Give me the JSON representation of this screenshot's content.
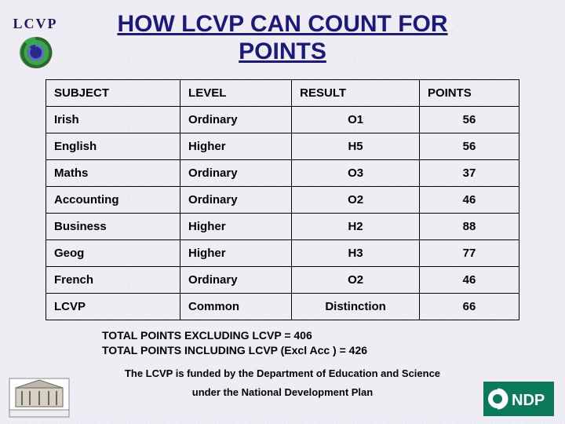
{
  "logo_text": "LCVP",
  "title_line1": "HOW LCVP CAN COUNT FOR",
  "title_line2": "POINTS",
  "table": {
    "headers": [
      "SUBJECT",
      "LEVEL",
      "RESULT",
      "POINTS"
    ],
    "rows": [
      {
        "subject": "Irish",
        "level": "Ordinary",
        "result": "O1",
        "points": "56"
      },
      {
        "subject": "English",
        "level": "Higher",
        "result": "H5",
        "points": "56"
      },
      {
        "subject": "Maths",
        "level": "Ordinary",
        "result": "O3",
        "points": "37"
      },
      {
        "subject": "Accounting",
        "level": "Ordinary",
        "result": "O2",
        "points": "46"
      },
      {
        "subject": "Business",
        "level": "Higher",
        "result": "H2",
        "points": "88"
      },
      {
        "subject": "Geog",
        "level": "Higher",
        "result": "H3",
        "points": "77"
      },
      {
        "subject": "French",
        "level": "Ordinary",
        "result": "O2",
        "points": "46"
      },
      {
        "subject": "LCVP",
        "level": "Common",
        "result": "Distinction",
        "points": "66"
      }
    ],
    "col_align": [
      "left",
      "left",
      "center",
      "center"
    ],
    "border_color": "#000000",
    "header_fontsize": 15,
    "cell_fontsize": 15
  },
  "totals": {
    "excl": "TOTAL POINTS EXCLUDING LCVP  = 406",
    "incl": "TOTAL POINTS INCLUDING LCVP (Excl Acc )  =  426"
  },
  "footer": {
    "line1": "The LCVP is funded by the Department of Education and Science",
    "line2": "under the National Development Plan"
  },
  "colors": {
    "title": "#1a1a7a",
    "background": "#f0ecf4",
    "ndp_green": "#0b7a5a",
    "ndp_text": "#ffffff",
    "logo_spiral_outer": "#3aa64b",
    "logo_spiral_inner": "#2a2a8a"
  },
  "ndp_label": "NDP"
}
